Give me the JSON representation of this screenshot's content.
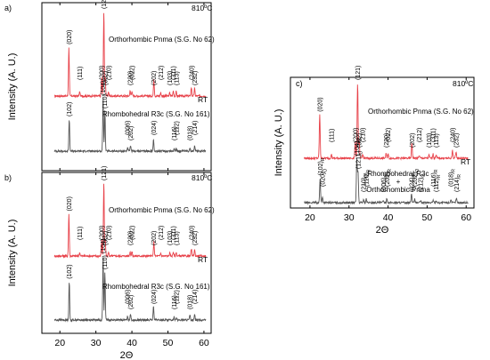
{
  "chart_data": [
    {
      "panel": "a)",
      "type": "line",
      "temperature": "810ºC",
      "ylabel": "Intensity (A. U.)",
      "xlabel": "",
      "xlim": [
        15,
        62
      ],
      "xticks": [],
      "series": [
        {
          "name": "Orthorhombic Pnma (S.G. No 62)",
          "color": "#e8424a",
          "end_label": "RT",
          "peaks": [
            {
              "label": "(020)",
              "x": 22.5,
              "rel": 0.58
            },
            {
              "label": "(111)",
              "x": 25.5,
              "rel": 0.05
            },
            {
              "label": "(121)",
              "x": 32.2,
              "rel": 1.0
            },
            {
              "label": "(200)",
              "x": 31.6,
              "rel": 0.22
            },
            {
              "label": "(002)",
              "x": 32.6,
              "rel": 0.22
            },
            {
              "label": "(210)",
              "x": 33.5,
              "rel": 0.05
            },
            {
              "label": "(220)",
              "x": 39.5,
              "rel": 0.06
            },
            {
              "label": "(022)",
              "x": 40.0,
              "rel": 0.06
            },
            {
              "label": "(202)",
              "x": 46.1,
              "rel": 0.2
            },
            {
              "label": "(212)",
              "x": 48.0,
              "rel": 0.04
            },
            {
              "label": "(103)",
              "x": 50.5,
              "rel": 0.04
            },
            {
              "label": "(311)",
              "x": 51.5,
              "rel": 0.06
            },
            {
              "label": "(113)",
              "x": 52.3,
              "rel": 0.05
            },
            {
              "label": "(240)",
              "x": 56.5,
              "rel": 0.1
            },
            {
              "label": "(232)",
              "x": 57.4,
              "rel": 0.09
            }
          ]
        },
        {
          "name": "Rhombohedral R3c (S.G. No 161)",
          "color": "#555555",
          "end_label": "",
          "peaks": [
            {
              "label": "(102)",
              "x": 22.6,
              "rel": 0.6
            },
            {
              "label": "(104)",
              "x": 32.0,
              "rel": 1.0
            },
            {
              "label": "(110)",
              "x": 32.5,
              "rel": 0.75
            },
            {
              "label": "(006)",
              "x": 38.8,
              "rel": 0.06
            },
            {
              "label": "(202)",
              "x": 39.6,
              "rel": 0.1
            },
            {
              "label": "(024)",
              "x": 46.0,
              "rel": 0.22
            },
            {
              "label": "(116)",
              "x": 51.7,
              "rel": 0.05
            },
            {
              "label": "(112)",
              "x": 52.3,
              "rel": 0.04
            },
            {
              "label": "(018)",
              "x": 56.1,
              "rel": 0.07
            },
            {
              "label": "(214)",
              "x": 57.4,
              "rel": 0.1
            }
          ]
        }
      ]
    },
    {
      "panel": "b)",
      "type": "line",
      "temperature": "810ºC",
      "ylabel": "Intensity (A. U.)",
      "xlabel": "2Θ",
      "xlim": [
        15,
        62
      ],
      "xticks": [
        20,
        30,
        40,
        50,
        60
      ],
      "series": [
        {
          "name": "Orthorhombic Pnma (S.G. No 62)",
          "color": "#e8424a",
          "end_label": "RT",
          "peaks": [
            {
              "label": "(020)",
              "x": 22.5,
              "rel": 0.58
            },
            {
              "label": "(111)",
              "x": 25.5,
              "rel": 0.05
            },
            {
              "label": "(121)",
              "x": 32.2,
              "rel": 1.0
            },
            {
              "label": "(200)",
              "x": 31.6,
              "rel": 0.22
            },
            {
              "label": "(002)",
              "x": 32.6,
              "rel": 0.22
            },
            {
              "label": "(210)",
              "x": 33.5,
              "rel": 0.05
            },
            {
              "label": "(220)",
              "x": 39.5,
              "rel": 0.06
            },
            {
              "label": "(022)",
              "x": 40.0,
              "rel": 0.06
            },
            {
              "label": "(202)",
              "x": 46.1,
              "rel": 0.2
            },
            {
              "label": "(212)",
              "x": 48.0,
              "rel": 0.04
            },
            {
              "label": "(103)",
              "x": 50.5,
              "rel": 0.04
            },
            {
              "label": "(311)",
              "x": 51.5,
              "rel": 0.06
            },
            {
              "label": "(113)",
              "x": 52.3,
              "rel": 0.05
            },
            {
              "label": "(240)",
              "x": 56.5,
              "rel": 0.1
            },
            {
              "label": "(232)",
              "x": 57.4,
              "rel": 0.09
            }
          ]
        },
        {
          "name": "Rhombohedral R3c (S.G. No 161)",
          "color": "#555555",
          "end_label": "",
          "peaks": [
            {
              "label": "(102)",
              "x": 22.6,
              "rel": 0.6
            },
            {
              "label": "(104)",
              "x": 32.0,
              "rel": 1.0
            },
            {
              "label": "(110)",
              "x": 32.5,
              "rel": 0.75
            },
            {
              "label": "(006)",
              "x": 38.8,
              "rel": 0.06
            },
            {
              "label": "(202)",
              "x": 39.6,
              "rel": 0.1
            },
            {
              "label": "(024)",
              "x": 46.0,
              "rel": 0.22
            },
            {
              "label": "(116)",
              "x": 51.7,
              "rel": 0.05
            },
            {
              "label": "(112)",
              "x": 52.3,
              "rel": 0.04
            },
            {
              "label": "(018)",
              "x": 56.1,
              "rel": 0.07
            },
            {
              "label": "(214)",
              "x": 57.4,
              "rel": 0.1
            }
          ]
        }
      ]
    },
    {
      "panel": "c)",
      "type": "line",
      "temperature": "810ºC",
      "ylabel": "Intensity (A. U.)",
      "xlabel": "2Θ",
      "xlim": [
        15,
        62
      ],
      "xticks": [
        20,
        30,
        40,
        50,
        60
      ],
      "series": [
        {
          "name": "Orthorhombic Pnma (S.G. No 62)",
          "color": "#e8424a",
          "end_label": "RT",
          "peaks": [
            {
              "label": "(020)",
              "x": 22.5,
              "rel": 0.58
            },
            {
              "label": "(111)",
              "x": 25.5,
              "rel": 0.05
            },
            {
              "label": "(121)",
              "x": 32.2,
              "rel": 1.0
            },
            {
              "label": "(200)",
              "x": 31.6,
              "rel": 0.22
            },
            {
              "label": "(002)",
              "x": 32.6,
              "rel": 0.22
            },
            {
              "label": "(210)",
              "x": 33.5,
              "rel": 0.05
            },
            {
              "label": "(220)",
              "x": 39.5,
              "rel": 0.06
            },
            {
              "label": "(022)",
              "x": 40.0,
              "rel": 0.06
            },
            {
              "label": "(202)",
              "x": 46.1,
              "rel": 0.2
            },
            {
              "label": "(212)",
              "x": 48.0,
              "rel": 0.04
            },
            {
              "label": "(103)",
              "x": 50.5,
              "rel": 0.04
            },
            {
              "label": "(311)",
              "x": 51.5,
              "rel": 0.06
            },
            {
              "label": "(113)",
              "x": 52.3,
              "rel": 0.05
            },
            {
              "label": "(240)",
              "x": 56.5,
              "rel": 0.1
            },
            {
              "label": "(232)",
              "x": 57.4,
              "rel": 0.09
            }
          ]
        },
        {
          "name": "Rhombohedral R3c + Orthorhombic Pnma",
          "color": "#555555",
          "end_label": "",
          "peaks": [
            {
              "label": "(102)R",
              "x": 22.6,
              "rel": 0.55
            },
            {
              "label": "(020)O",
              "x": 23.2,
              "rel": 0.12
            },
            {
              "label": "(104)R",
              "x": 32.0,
              "rel": 1.0
            },
            {
              "label": "(121)O",
              "x": 32.3,
              "rel": 0.7
            },
            {
              "label": "(210)O",
              "x": 33.7,
              "rel": 0.06
            },
            {
              "label": "(110)R",
              "x": 34.4,
              "rel": 0.08
            },
            {
              "label": "(006)R",
              "x": 38.8,
              "rel": 0.06
            },
            {
              "label": "(202)R",
              "x": 39.7,
              "rel": 0.1
            },
            {
              "label": "(024)R",
              "x": 46.0,
              "rel": 0.2
            },
            {
              "label": "(202)O",
              "x": 46.8,
              "rel": 0.08
            },
            {
              "label": "(212)O",
              "x": 48.3,
              "rel": 0.04
            },
            {
              "label": "(116)R",
              "x": 51.6,
              "rel": 0.06
            },
            {
              "label": "(112)R",
              "x": 52.3,
              "rel": 0.05
            },
            {
              "label": "(018)R",
              "x": 56.1,
              "rel": 0.07
            },
            {
              "label": "(214)R",
              "x": 57.5,
              "rel": 0.1
            }
          ]
        }
      ]
    }
  ]
}
